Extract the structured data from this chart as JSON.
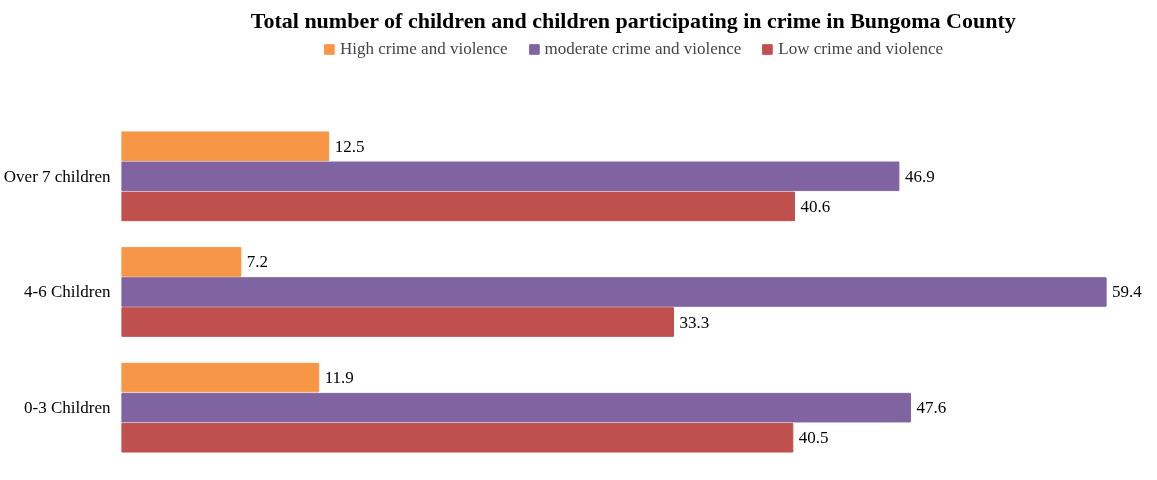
{
  "chart_data": {
    "type": "bar",
    "orientation": "horizontal",
    "title": "Total number of children and children participating in crime in Bungoma County",
    "categories": [
      "Over 7 children",
      "4-6 Children",
      "0-3 Children"
    ],
    "series": [
      {
        "name": "High crime and violence",
        "color": "#f79646",
        "values": [
          12.5,
          7.2,
          11.9
        ]
      },
      {
        "name": "moderate crime and violence",
        "color": "#8064a2",
        "values": [
          46.9,
          59.4,
          47.6
        ]
      },
      {
        "name": "Low crime and violence",
        "color": "#c0504d",
        "values": [
          40.6,
          33.3,
          40.5
        ]
      }
    ],
    "data_labels": true,
    "legend": "top"
  }
}
